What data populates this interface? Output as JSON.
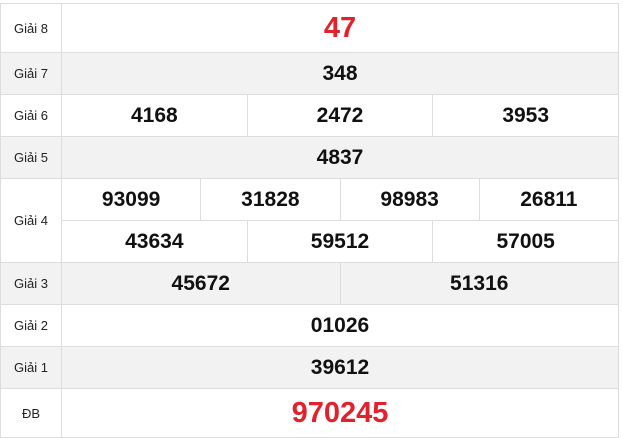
{
  "colors": {
    "special": "#e3212d",
    "alt_row": "#f2f2f2",
    "border": "#dddddd"
  },
  "prizes": [
    {
      "label": "Giải 8",
      "rows": [
        [
          "47"
        ]
      ]
    },
    {
      "label": "Giải 7",
      "rows": [
        [
          "348"
        ]
      ]
    },
    {
      "label": "Giải 6",
      "rows": [
        [
          "4168",
          "2472",
          "3953"
        ]
      ]
    },
    {
      "label": "Giải 5",
      "rows": [
        [
          "4837"
        ]
      ]
    },
    {
      "label": "Giải 4",
      "rows": [
        [
          "93099",
          "31828",
          "98983",
          "26811"
        ],
        [
          "43634",
          "59512",
          "57005"
        ]
      ]
    },
    {
      "label": "Giải 3",
      "rows": [
        [
          "45672",
          "51316"
        ]
      ]
    },
    {
      "label": "Giải 2",
      "rows": [
        [
          "01026"
        ]
      ]
    },
    {
      "label": "Giải 1",
      "rows": [
        [
          "39612"
        ]
      ]
    },
    {
      "label": "ĐB",
      "rows": [
        [
          "970245"
        ]
      ]
    }
  ]
}
